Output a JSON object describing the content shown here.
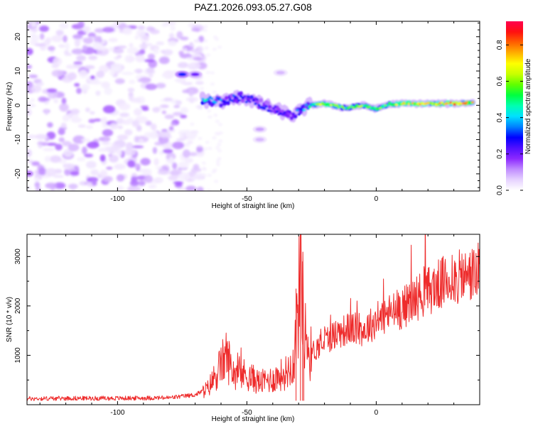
{
  "figure_title": "PAZ1.2026.093.05.27.G08",
  "chart_data": [
    {
      "type": "heatmap",
      "title": "",
      "xlabel": "Height of straight line (km)",
      "ylabel": "Frequency (Hz)",
      "xlim": [
        -135,
        40
      ],
      "ylim": [
        -25,
        24.5
      ],
      "xticks": [
        -100,
        -50,
        0
      ],
      "xtick_labels": [
        "-100",
        "-50",
        "0"
      ],
      "yticks": [
        -20,
        -10,
        0,
        10,
        20
      ],
      "ytick_labels": [
        "-20",
        "-10",
        "0",
        "10",
        "20"
      ],
      "noise_region_x": [
        -135,
        -67
      ],
      "signal_track": [
        {
          "x": -67,
          "freq": 1.5,
          "amp": 0.45
        },
        {
          "x": -60,
          "freq": 1.0,
          "amp": 0.35
        },
        {
          "x": -52,
          "freq": 2.5,
          "amp": 0.3
        },
        {
          "x": -45,
          "freq": 0.5,
          "amp": 0.3
        },
        {
          "x": -38,
          "freq": -1.5,
          "amp": 0.25
        },
        {
          "x": -32,
          "freq": -3.0,
          "amp": 0.3
        },
        {
          "x": -26,
          "freq": 0.0,
          "amp": 0.45
        },
        {
          "x": -20,
          "freq": 0.5,
          "amp": 0.7
        },
        {
          "x": -12,
          "freq": -0.8,
          "amp": 0.55
        },
        {
          "x": -5,
          "freq": 0.0,
          "amp": 0.6
        },
        {
          "x": 0,
          "freq": -1.0,
          "amp": 0.55
        },
        {
          "x": 5,
          "freq": 0.3,
          "amp": 0.6
        },
        {
          "x": 10,
          "freq": 0.5,
          "amp": 0.7
        },
        {
          "x": 20,
          "freq": 0.5,
          "amp": 0.7
        },
        {
          "x": 30,
          "freq": 0.5,
          "amp": 0.85
        },
        {
          "x": 38,
          "freq": 0.8,
          "amp": 0.7
        }
      ],
      "side_features": [
        {
          "x": -75,
          "freq": 9.0,
          "amp": 0.3
        },
        {
          "x": -70,
          "freq": 9.0,
          "amp": 0.2
        },
        {
          "x": -37,
          "freq": 9.5,
          "amp": 0.08
        },
        {
          "x": -45,
          "freq": -10.0,
          "amp": 0.08
        },
        {
          "x": -45,
          "freq": -7.0,
          "amp": 0.1
        }
      ]
    },
    {
      "type": "line",
      "title": "",
      "xlabel": "Height of straight line (km)",
      "ylabel": "SNR (10 * v/v)",
      "xlim": [
        -135,
        40
      ],
      "ylim": [
        0,
        3450
      ],
      "xticks": [
        -100,
        -50,
        0
      ],
      "xtick_labels": [
        "-100",
        "-50",
        "0"
      ],
      "yticks": [
        1000,
        2000,
        3000
      ],
      "ytick_labels": [
        "1000",
        "2000",
        "3000"
      ],
      "series": [
        {
          "name": "SNR",
          "color": "#ee2c2c",
          "x": [
            -135,
            -120,
            -100,
            -80,
            -70,
            -65,
            -60,
            -58,
            -55,
            -50,
            -45,
            -40,
            -35,
            -32,
            -30,
            -29,
            -28,
            -27,
            -26,
            -25,
            -20,
            -15,
            -10,
            -5,
            0,
            5,
            10,
            15,
            20,
            25,
            30,
            35,
            40
          ],
          "values": [
            120,
            130,
            130,
            140,
            200,
            330,
            800,
            1000,
            650,
            600,
            450,
            520,
            650,
            850,
            2000,
            3450,
            1300,
            1500,
            1000,
            1050,
            1300,
            1450,
            1550,
            1500,
            1700,
            1850,
            1950,
            2150,
            2300,
            2450,
            2550,
            2600,
            2700
          ]
        }
      ]
    }
  ],
  "colorbar": {
    "label": "Normalized spectral amplitude",
    "range": [
      0,
      0.93
    ],
    "ticks": [
      0.0,
      0.2,
      0.4,
      0.6,
      0.8
    ],
    "tick_labels": [
      "0.0",
      "0.2",
      "0.4",
      "0.6",
      "0.8"
    ],
    "colors": [
      "#ffffff",
      "#e6d2ff",
      "#c08cff",
      "#8c28ff",
      "#5010ff",
      "#0000ff",
      "#0080ff",
      "#00e0ff",
      "#00ffb0",
      "#00ff40",
      "#60ff00",
      "#c8ff00",
      "#ffff00",
      "#ffb000",
      "#ff6000",
      "#ff1010",
      "#ff0050"
    ]
  }
}
